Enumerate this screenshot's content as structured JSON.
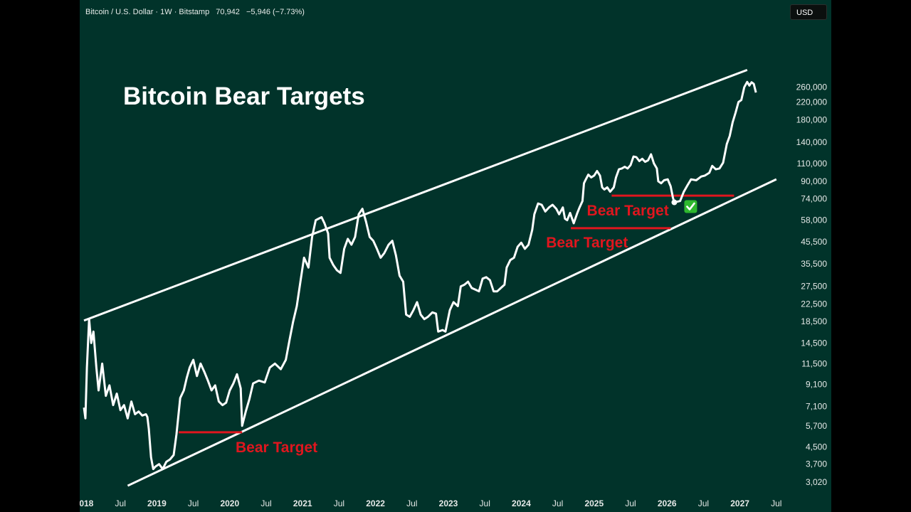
{
  "header": {
    "symbol": "Bitcoin / U.S. Dollar · 1W · Bitstamp",
    "price": "70,942",
    "change": "−5,946 (−7.73%)",
    "currency": "USD"
  },
  "colors": {
    "background": "#01332A",
    "price_line": "#FFFFFF",
    "channel_lines": "#FFFFFF",
    "target_lines": "#E0161E",
    "target_text": "#E0161E",
    "check": "#2EB82E"
  },
  "chart_data": {
    "type": "line",
    "title": "Bitcoin Bear Targets",
    "y_scale": "log",
    "ylim": [
      2900,
      300000
    ],
    "xlim": [
      2018.0,
      2027.5
    ],
    "y_ticks": [
      "3,020",
      "3,700",
      "4,500",
      "5,700",
      "7,100",
      "9,100",
      "11,500",
      "14,500",
      "18,500",
      "22,500",
      "27,500",
      "35,500",
      "45,500",
      "58,000",
      "74,000",
      "90,000",
      "110,000",
      "140,000",
      "180,000",
      "220,000",
      "260,000"
    ],
    "x_ticks": [
      {
        "label": "2018",
        "value": 2018.0,
        "bold": true
      },
      {
        "label": "Jul",
        "value": 2018.5,
        "bold": false
      },
      {
        "label": "2019",
        "value": 2019.0,
        "bold": true
      },
      {
        "label": "Jul",
        "value": 2019.5,
        "bold": false
      },
      {
        "label": "2020",
        "value": 2020.0,
        "bold": true
      },
      {
        "label": "Jul",
        "value": 2020.5,
        "bold": false
      },
      {
        "label": "2021",
        "value": 2021.0,
        "bold": true
      },
      {
        "label": "Jul",
        "value": 2021.5,
        "bold": false
      },
      {
        "label": "2022",
        "value": 2022.0,
        "bold": true
      },
      {
        "label": "Jul",
        "value": 2022.5,
        "bold": false
      },
      {
        "label": "2023",
        "value": 2023.0,
        "bold": true
      },
      {
        "label": "Jul",
        "value": 2023.5,
        "bold": false
      },
      {
        "label": "2024",
        "value": 2024.0,
        "bold": true
      },
      {
        "label": "Jul",
        "value": 2024.5,
        "bold": false
      },
      {
        "label": "2025",
        "value": 2025.0,
        "bold": true
      },
      {
        "label": "Jul",
        "value": 2025.5,
        "bold": false
      },
      {
        "label": "2026",
        "value": 2026.0,
        "bold": true
      },
      {
        "label": "Jul",
        "value": 2026.5,
        "bold": false
      },
      {
        "label": "2027",
        "value": 2027.0,
        "bold": true
      },
      {
        "label": "Jul",
        "value": 2027.5,
        "bold": false
      }
    ],
    "price_series": [
      [
        2018.0,
        7000
      ],
      [
        2018.02,
        6200
      ],
      [
        2018.04,
        11000
      ],
      [
        2018.07,
        19000
      ],
      [
        2018.1,
        14500
      ],
      [
        2018.13,
        16500
      ],
      [
        2018.17,
        11000
      ],
      [
        2018.2,
        8500
      ],
      [
        2018.25,
        11500
      ],
      [
        2018.3,
        8000
      ],
      [
        2018.35,
        9000
      ],
      [
        2018.4,
        7200
      ],
      [
        2018.45,
        8200
      ],
      [
        2018.5,
        6800
      ],
      [
        2018.55,
        7200
      ],
      [
        2018.6,
        6200
      ],
      [
        2018.65,
        7500
      ],
      [
        2018.7,
        6500
      ],
      [
        2018.75,
        6700
      ],
      [
        2018.8,
        6400
      ],
      [
        2018.85,
        6500
      ],
      [
        2018.87,
        6300
      ],
      [
        2018.89,
        5500
      ],
      [
        2018.92,
        4000
      ],
      [
        2018.95,
        3500
      ],
      [
        2018.98,
        3600
      ],
      [
        2019.03,
        3700
      ],
      [
        2019.08,
        3500
      ],
      [
        2019.13,
        3800
      ],
      [
        2019.18,
        3900
      ],
      [
        2019.23,
        4100
      ],
      [
        2019.27,
        5200
      ],
      [
        2019.32,
        7800
      ],
      [
        2019.37,
        8500
      ],
      [
        2019.41,
        9800
      ],
      [
        2019.45,
        11000
      ],
      [
        2019.5,
        12000
      ],
      [
        2019.55,
        10000
      ],
      [
        2019.6,
        11500
      ],
      [
        2019.65,
        10500
      ],
      [
        2019.7,
        9500
      ],
      [
        2019.75,
        8500
      ],
      [
        2019.8,
        9000
      ],
      [
        2019.85,
        7500
      ],
      [
        2019.9,
        7200
      ],
      [
        2019.95,
        7400
      ],
      [
        2020.0,
        8500
      ],
      [
        2020.05,
        9200
      ],
      [
        2020.1,
        10200
      ],
      [
        2020.15,
        8700
      ],
      [
        2020.17,
        5700
      ],
      [
        2020.22,
        6700
      ],
      [
        2020.27,
        7700
      ],
      [
        2020.32,
        9200
      ],
      [
        2020.4,
        9500
      ],
      [
        2020.48,
        9300
      ],
      [
        2020.55,
        11000
      ],
      [
        2020.62,
        11500
      ],
      [
        2020.7,
        10800
      ],
      [
        2020.77,
        12000
      ],
      [
        2020.82,
        15000
      ],
      [
        2020.87,
        18500
      ],
      [
        2020.92,
        22000
      ],
      [
        2020.97,
        29000
      ],
      [
        2021.02,
        38000
      ],
      [
        2021.08,
        34000
      ],
      [
        2021.13,
        48000
      ],
      [
        2021.18,
        58000
      ],
      [
        2021.22,
        59000
      ],
      [
        2021.26,
        60000
      ],
      [
        2021.3,
        56000
      ],
      [
        2021.35,
        50000
      ],
      [
        2021.37,
        38000
      ],
      [
        2021.42,
        35000
      ],
      [
        2021.47,
        33000
      ],
      [
        2021.52,
        32000
      ],
      [
        2021.57,
        42000
      ],
      [
        2021.62,
        47000
      ],
      [
        2021.67,
        44000
      ],
      [
        2021.72,
        48000
      ],
      [
        2021.77,
        62000
      ],
      [
        2021.82,
        66000
      ],
      [
        2021.87,
        57000
      ],
      [
        2021.92,
        48000
      ],
      [
        2021.97,
        46000
      ],
      [
        2022.02,
        42000
      ],
      [
        2022.07,
        38000
      ],
      [
        2022.12,
        40000
      ],
      [
        2022.18,
        44000
      ],
      [
        2022.23,
        46000
      ],
      [
        2022.28,
        39000
      ],
      [
        2022.33,
        31000
      ],
      [
        2022.38,
        29000
      ],
      [
        2022.42,
        20000
      ],
      [
        2022.47,
        19500
      ],
      [
        2022.52,
        21000
      ],
      [
        2022.57,
        23000
      ],
      [
        2022.62,
        20000
      ],
      [
        2022.67,
        19000
      ],
      [
        2022.72,
        19500
      ],
      [
        2022.78,
        20500
      ],
      [
        2022.83,
        20200
      ],
      [
        2022.86,
        16500
      ],
      [
        2022.92,
        16800
      ],
      [
        2022.96,
        16500
      ],
      [
        2023.02,
        21000
      ],
      [
        2023.07,
        23000
      ],
      [
        2023.13,
        22000
      ],
      [
        2023.17,
        27500
      ],
      [
        2023.22,
        28000
      ],
      [
        2023.27,
        29000
      ],
      [
        2023.32,
        27000
      ],
      [
        2023.37,
        26500
      ],
      [
        2023.42,
        26000
      ],
      [
        2023.47,
        30000
      ],
      [
        2023.52,
        30500
      ],
      [
        2023.57,
        29500
      ],
      [
        2023.62,
        26000
      ],
      [
        2023.67,
        26000
      ],
      [
        2023.72,
        27000
      ],
      [
        2023.77,
        28000
      ],
      [
        2023.8,
        34000
      ],
      [
        2023.85,
        37000
      ],
      [
        2023.9,
        38000
      ],
      [
        2023.95,
        43000
      ],
      [
        2024.0,
        45000
      ],
      [
        2024.05,
        42000
      ],
      [
        2024.1,
        44000
      ],
      [
        2024.15,
        52000
      ],
      [
        2024.18,
        62000
      ],
      [
        2024.23,
        70000
      ],
      [
        2024.28,
        69000
      ],
      [
        2024.33,
        64000
      ],
      [
        2024.38,
        67000
      ],
      [
        2024.43,
        69000
      ],
      [
        2024.48,
        66000
      ],
      [
        2024.52,
        62000
      ],
      [
        2024.57,
        67000
      ],
      [
        2024.6,
        59000
      ],
      [
        2024.63,
        58000
      ],
      [
        2024.67,
        63000
      ],
      [
        2024.72,
        56000
      ],
      [
        2024.77,
        63000
      ],
      [
        2024.8,
        67000
      ],
      [
        2024.84,
        72000
      ],
      [
        2024.86,
        88000
      ],
      [
        2024.88,
        91000
      ],
      [
        2024.92,
        97000
      ],
      [
        2024.96,
        94000
      ],
      [
        2025.0,
        96000
      ],
      [
        2025.04,
        101000
      ],
      [
        2025.08,
        96000
      ],
      [
        2025.11,
        84000
      ],
      [
        2025.14,
        82000
      ],
      [
        2025.18,
        84000
      ],
      [
        2025.22,
        80000
      ],
      [
        2025.27,
        84000
      ],
      [
        2025.3,
        94000
      ],
      [
        2025.34,
        103000
      ],
      [
        2025.38,
        104000
      ],
      [
        2025.42,
        106000
      ],
      [
        2025.46,
        104000
      ],
      [
        2025.5,
        108000
      ],
      [
        2025.54,
        119000
      ],
      [
        2025.58,
        118000
      ],
      [
        2025.62,
        113000
      ],
      [
        2025.66,
        116000
      ],
      [
        2025.7,
        112000
      ],
      [
        2025.74,
        114000
      ],
      [
        2025.78,
        122000
      ],
      [
        2025.82,
        110000
      ],
      [
        2025.86,
        104000
      ],
      [
        2025.88,
        90000
      ],
      [
        2025.92,
        88000
      ],
      [
        2025.96,
        91000
      ],
      [
        2026.01,
        92000
      ],
      [
        2026.05,
        85000
      ],
      [
        2026.08,
        75000
      ],
      [
        2026.1,
        70942
      ],
      [
        2026.18,
        72000
      ],
      [
        2026.23,
        80000
      ],
      [
        2026.28,
        86000
      ],
      [
        2026.33,
        92000
      ],
      [
        2026.4,
        91000
      ],
      [
        2026.47,
        95000
      ],
      [
        2026.52,
        96000
      ],
      [
        2026.58,
        99000
      ],
      [
        2026.62,
        107000
      ],
      [
        2026.67,
        103000
      ],
      [
        2026.72,
        104000
      ],
      [
        2026.77,
        111000
      ],
      [
        2026.82,
        137000
      ],
      [
        2026.86,
        150000
      ],
      [
        2026.9,
        175000
      ],
      [
        2026.94,
        195000
      ],
      [
        2026.98,
        220000
      ],
      [
        2027.02,
        225000
      ],
      [
        2027.06,
        260000
      ],
      [
        2027.1,
        276000
      ],
      [
        2027.13,
        265000
      ],
      [
        2027.16,
        275000
      ],
      [
        2027.19,
        270000
      ],
      [
        2027.22,
        245000
      ]
    ],
    "channel_upper": [
      [
        2018.0,
        18700
      ],
      [
        2027.1,
        316000
      ]
    ],
    "channel_lower": [
      [
        2018.6,
        2900
      ],
      [
        2027.5,
        92000
      ]
    ],
    "bear_targets": [
      {
        "label": "Bear Target",
        "y": 5300,
        "x_start": 2019.3,
        "x_end": 2020.17
      },
      {
        "label": "Bear Target",
        "y": 53000,
        "x_start": 2024.68,
        "x_end": 2026.05
      },
      {
        "label": "Bear Target",
        "y": 76500,
        "x_start": 2025.24,
        "x_end": 2026.92
      }
    ],
    "marker": {
      "x": 2026.1,
      "y": 70942,
      "icon": "check-mark-icon"
    },
    "grid": false,
    "legend": "none"
  }
}
